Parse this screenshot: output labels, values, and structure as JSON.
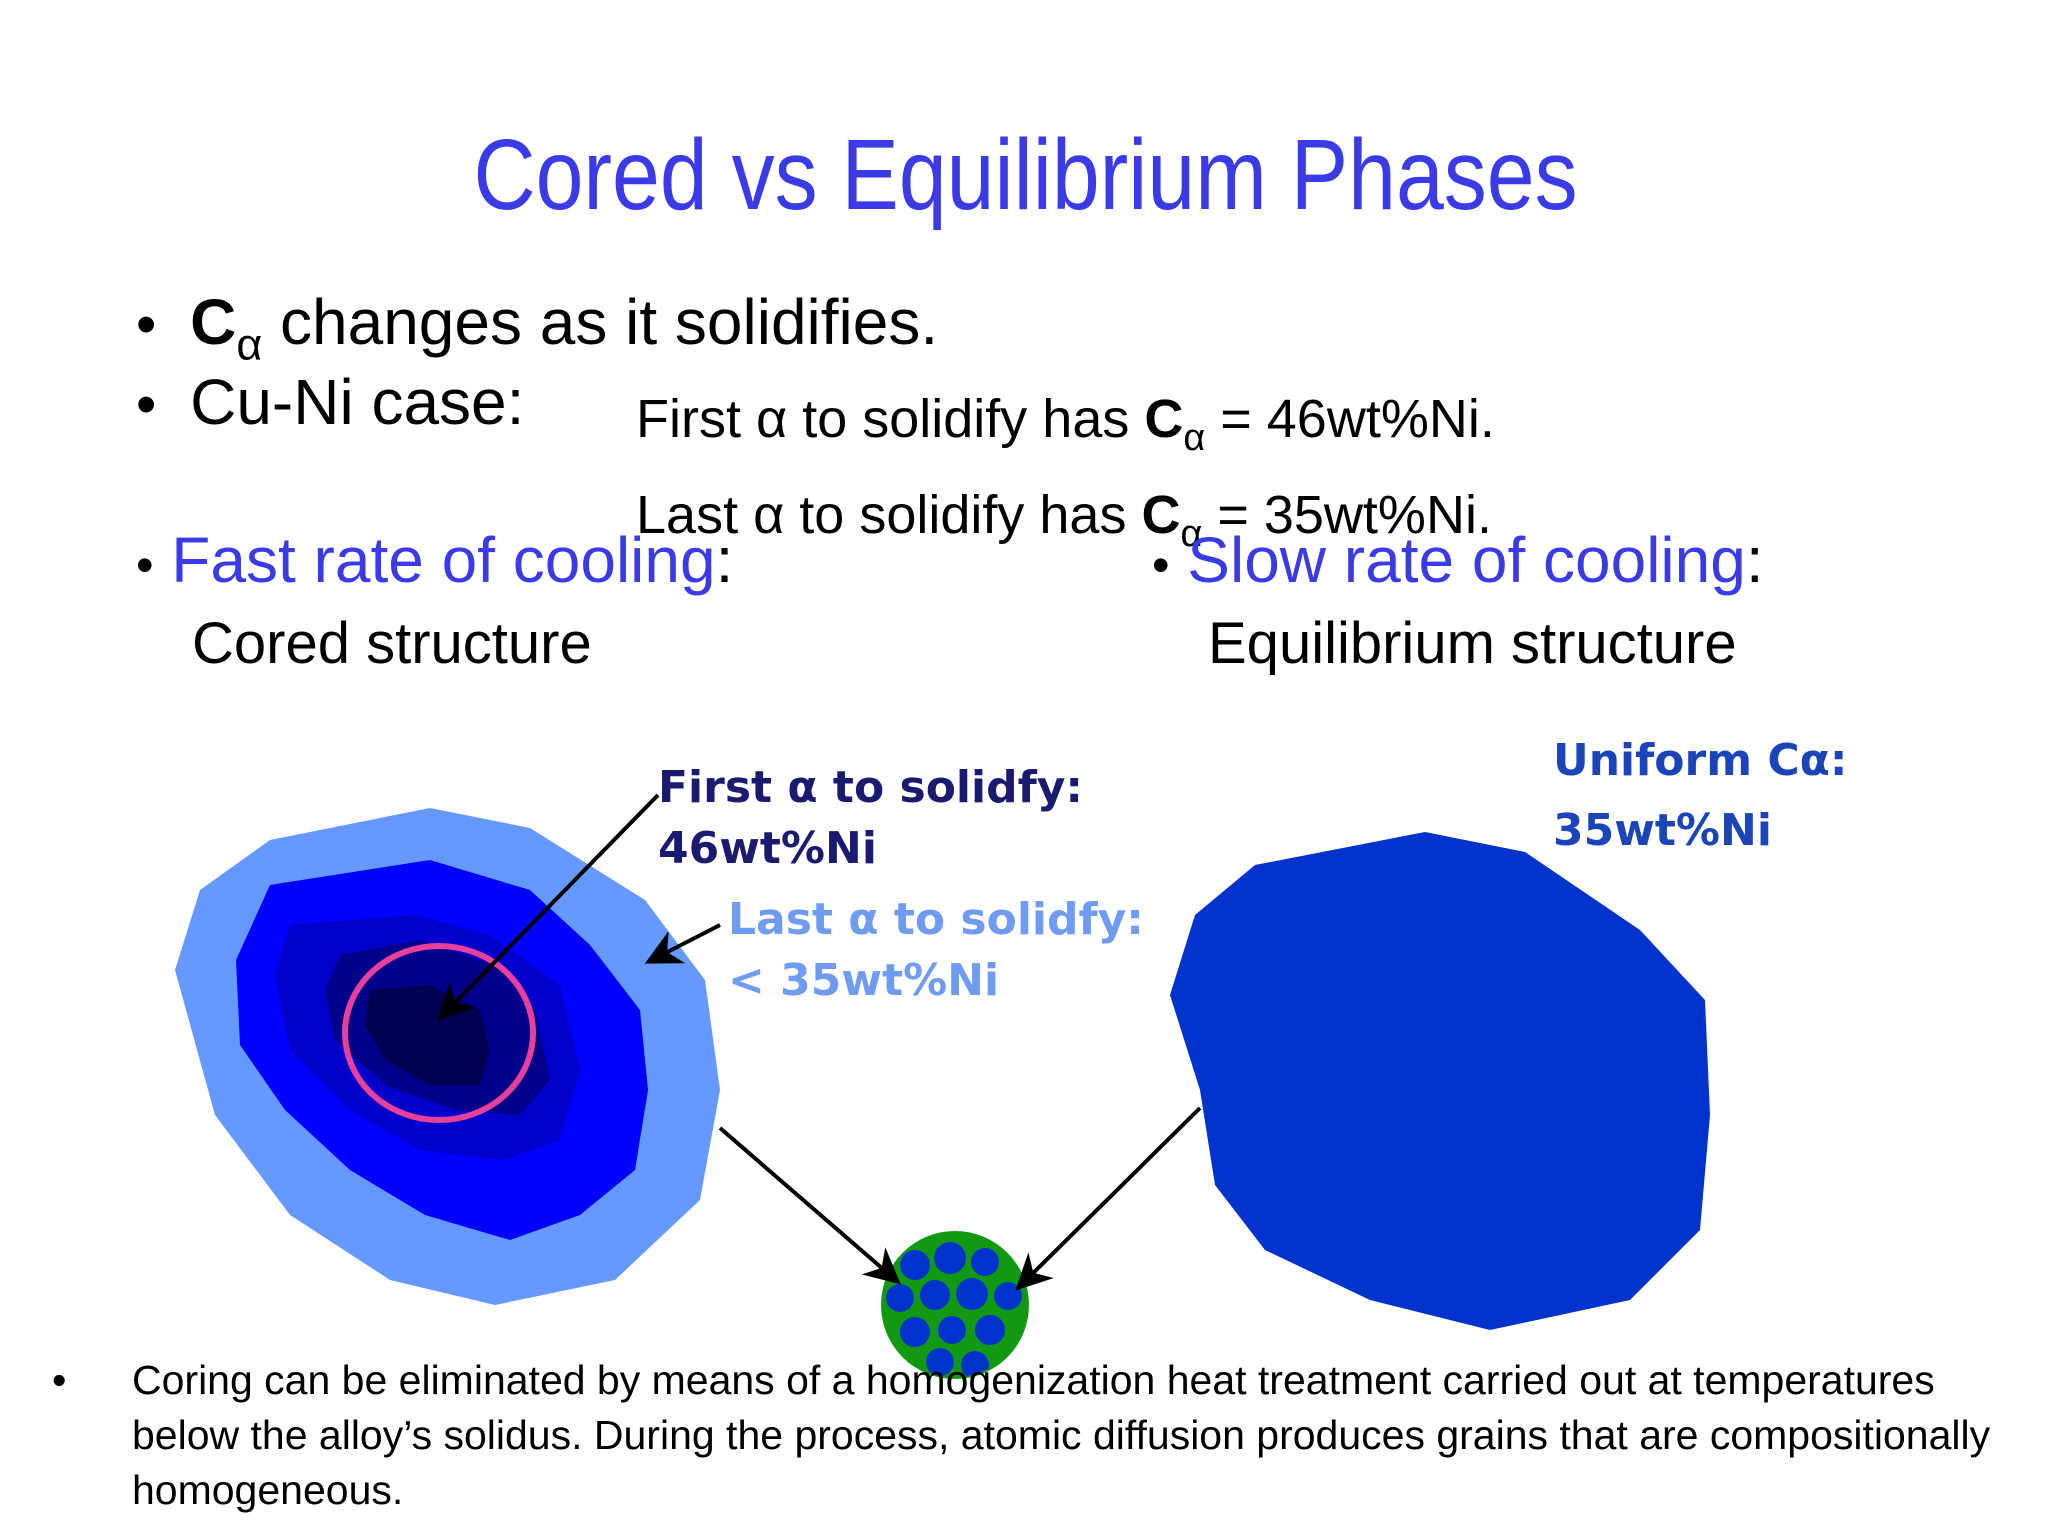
{
  "title": "Cored vs Equilibrium Phases",
  "bullets": {
    "b1": {
      "c": "C",
      "sub": "α",
      "text": " changes as it solidifies."
    },
    "b2": {
      "text": "Cu-Ni case:"
    }
  },
  "cuni": {
    "line1": {
      "pre": "First α to solidify has ",
      "c": "C",
      "sub": "α",
      "post": " = 46wt%Ni."
    },
    "line2": {
      "pre": "Last  α to solidify has ",
      "c": "C",
      "sub": "α",
      "post": " = 35wt%Ni."
    }
  },
  "fast": {
    "highlight": "Fast rate of cooling",
    "colon": ":",
    "sub": "Cored structure"
  },
  "slow": {
    "highlight": "Slow rate of cooling",
    "colon": ":",
    "sub": "Equilibrium structure"
  },
  "labels": {
    "first_line1": "First α to solidfy:",
    "first_line2": "46wt%Ni",
    "last_line1": "Last α  to solidfy:",
    "last_line2": "< 35wt%Ni",
    "uniform_line1": "Uniform Cα:",
    "uniform_line2": "35wt%Ni"
  },
  "footnote": "Coring can be eliminated by means of a homogenization heat treatment carried out at temperatures below the alloy’s solidus. During the process, atomic diffusion produces grains that are compositionally homogeneous.",
  "colors": {
    "title_blue": "#3a3ae6",
    "light_blue": "#6699ff",
    "bright_blue": "#0000ff",
    "mid_blue": "#0000cc",
    "dark_blue": "#00008a",
    "navy": "#000050",
    "uniform_blue": "#0033cc",
    "label_navy": "#1a1a6e",
    "label_light": "#6f9cf0",
    "pink_ring": "#e6409a",
    "green": "#119911"
  }
}
